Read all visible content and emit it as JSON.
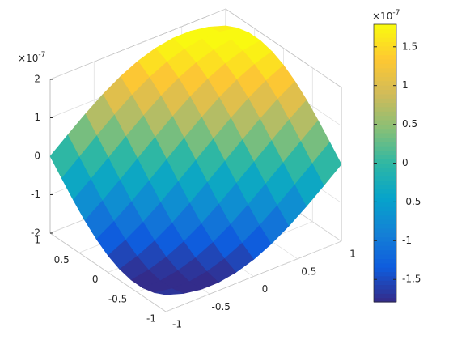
{
  "chart_data": {
    "type": "surface",
    "x": [
      -1,
      -0.8,
      -0.6,
      -0.4,
      -0.2,
      0,
      0.2,
      0.4,
      0.6,
      0.8,
      1
    ],
    "y": [
      -1,
      -0.8,
      -0.6,
      -0.4,
      -0.2,
      0,
      0.2,
      0.4,
      0.6,
      0.8,
      1
    ],
    "z": [
      [
        -1.56,
        -1.71,
        -1.79,
        -1.79,
        -1.71,
        -1.56,
        -1.34,
        -1.06,
        -0.73,
        -0.37,
        0
      ],
      [
        -1.71,
        -1.79,
        -1.79,
        -1.71,
        -1.56,
        -1.34,
        -1.06,
        -0.73,
        -0.37,
        0,
        0.37
      ],
      [
        -1.79,
        -1.79,
        -1.71,
        -1.56,
        -1.34,
        -1.06,
        -0.73,
        -0.37,
        0,
        0.37,
        0.73
      ],
      [
        -1.79,
        -1.71,
        -1.56,
        -1.34,
        -1.06,
        -0.73,
        -0.37,
        0,
        0.37,
        0.73,
        1.06
      ],
      [
        -1.71,
        -1.56,
        -1.34,
        -1.06,
        -0.73,
        -0.37,
        0,
        0.37,
        0.73,
        1.06,
        1.34
      ],
      [
        -1.56,
        -1.34,
        -1.06,
        -0.73,
        -0.37,
        0,
        0.37,
        0.73,
        1.06,
        1.34,
        1.56
      ],
      [
        -1.34,
        -1.06,
        -0.73,
        -0.37,
        0,
        0.37,
        0.73,
        1.06,
        1.34,
        1.56,
        1.71
      ],
      [
        -1.06,
        -0.73,
        -0.37,
        0,
        0.37,
        0.73,
        1.06,
        1.34,
        1.56,
        1.71,
        1.79
      ],
      [
        -0.73,
        -0.37,
        0,
        0.37,
        0.73,
        1.06,
        1.34,
        1.56,
        1.71,
        1.79,
        1.79
      ],
      [
        -0.37,
        0,
        0.37,
        0.73,
        1.06,
        1.34,
        1.56,
        1.71,
        1.79,
        1.79,
        1.71
      ],
      [
        0,
        0.37,
        0.73,
        1.06,
        1.34,
        1.56,
        1.71,
        1.79,
        1.79,
        1.71,
        1.56
      ]
    ],
    "xlim": [
      -1,
      1
    ],
    "ylim": [
      -1,
      1
    ],
    "zlim": [
      -2,
      2
    ],
    "xticks": [
      -1,
      -0.5,
      0,
      0.5,
      1
    ],
    "yticks": [
      -1,
      -0.5,
      0,
      0.5,
      1
    ],
    "zticks": [
      -2,
      -1,
      0,
      1,
      2
    ],
    "z_multiplier": "×10",
    "z_exponent": "-7",
    "grid": true,
    "colorbar": {
      "clim": [
        -1.79,
        1.79
      ],
      "ticks": [
        -1.5,
        -1,
        -0.5,
        0,
        0.5,
        1,
        1.5
      ],
      "multiplier": "×10",
      "exponent": "-7"
    }
  }
}
